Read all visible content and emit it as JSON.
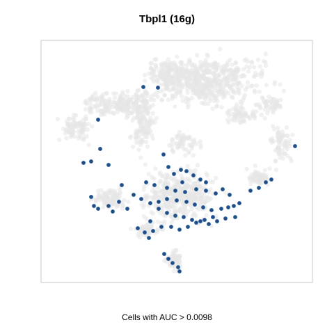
{
  "chart_data": {
    "type": "scatter",
    "title": "Tbpl1 (16g)",
    "xlabel": "Cells with AUC > 0.0098",
    "ylabel": "",
    "grid": false,
    "background_color": "#e6e6e6",
    "highlight_color": "#1f4e86",
    "series": [
      {
        "values": [
          [
            206,
            125
          ],
          [
            227,
            126
          ],
          [
            141,
            172
          ],
          [
            144,
            214
          ],
          [
            120,
            234
          ],
          [
            131,
            232
          ],
          [
            156,
            237
          ],
          [
            235,
            222
          ],
          [
            242,
            240
          ],
          [
            260,
            244
          ],
          [
            268,
            246
          ],
          [
            278,
            252
          ],
          [
            288,
            258
          ],
          [
            296,
            262
          ],
          [
            250,
            250
          ],
          [
            262,
            262
          ],
          [
            210,
            262
          ],
          [
            222,
            266
          ],
          [
            240,
            270
          ],
          [
            252,
            274
          ],
          [
            266,
            276
          ],
          [
            282,
            272
          ],
          [
            296,
            274
          ],
          [
            310,
            278
          ],
          [
            320,
            272
          ],
          [
            330,
            280
          ],
          [
            175,
            266
          ],
          [
            171,
            290
          ],
          [
            183,
            300
          ],
          [
            192,
            280
          ],
          [
            203,
            286
          ],
          [
            216,
            292
          ],
          [
            228,
            290
          ],
          [
            240,
            286
          ],
          [
            254,
            288
          ],
          [
            268,
            290
          ],
          [
            280,
            294
          ],
          [
            292,
            298
          ],
          [
            304,
            302
          ],
          [
            318,
            300
          ],
          [
            328,
            298
          ],
          [
            336,
            296
          ],
          [
            131,
            283
          ],
          [
            135,
            296
          ],
          [
            141,
            300
          ],
          [
            156,
            296
          ],
          [
            162,
            304
          ],
          [
            228,
            300
          ],
          [
            240,
            306
          ],
          [
            252,
            310
          ],
          [
            264,
            312
          ],
          [
            276,
            316
          ],
          [
            288,
            318
          ],
          [
            300,
            322
          ],
          [
            312,
            318
          ],
          [
            324,
            314
          ],
          [
            198,
            328
          ],
          [
            208,
            334
          ],
          [
            220,
            332
          ],
          [
            232,
            326
          ],
          [
            246,
            326
          ],
          [
            258,
            330
          ],
          [
            270,
            326
          ],
          [
            282,
            320
          ],
          [
            294,
            316
          ],
          [
            306,
            312
          ],
          [
            216,
            318
          ],
          [
            214,
            342
          ],
          [
            236,
            365
          ],
          [
            242,
            372
          ],
          [
            248,
            378
          ],
          [
            256,
            384
          ],
          [
            258,
            390
          ],
          [
            360,
            274
          ],
          [
            372,
            270
          ],
          [
            382,
            262
          ],
          [
            390,
            258
          ],
          [
            424,
            210
          ],
          [
            344,
            292
          ],
          [
            338,
            312
          ]
        ]
      }
    ]
  }
}
